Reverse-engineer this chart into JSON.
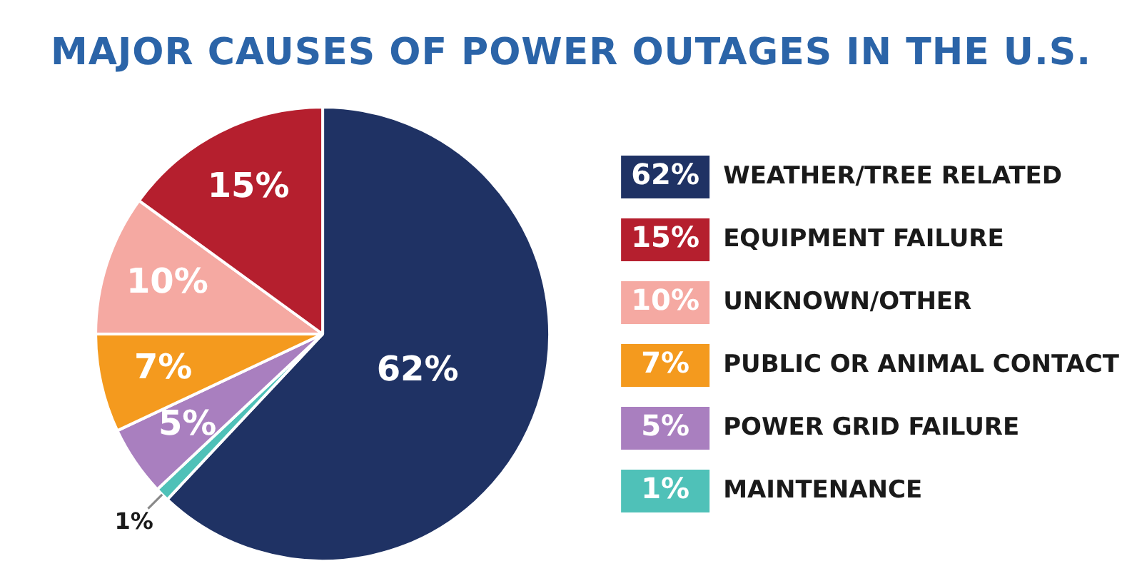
{
  "chart_data": {
    "type": "pie",
    "title": "MAJOR CAUSES OF POWER OUTAGES IN THE U.S.",
    "categories": [
      "WEATHER/TREE RELATED",
      "MAINTENANCE",
      "POWER GRID FAILURE",
      "PUBLIC OR ANIMAL CONTACT",
      "UNKNOWN/OTHER",
      "EQUIPMENT FAILURE"
    ],
    "values": [
      62,
      1,
      5,
      7,
      10,
      15
    ],
    "colors": [
      "#1f3264",
      "#4fc1b8",
      "#a97fbf",
      "#f49a1e",
      "#f5a9a2",
      "#b51f2e"
    ],
    "value_labels": [
      "62%",
      "1%",
      "5%",
      "7%",
      "10%",
      "15%"
    ],
    "legend": "right"
  }
}
